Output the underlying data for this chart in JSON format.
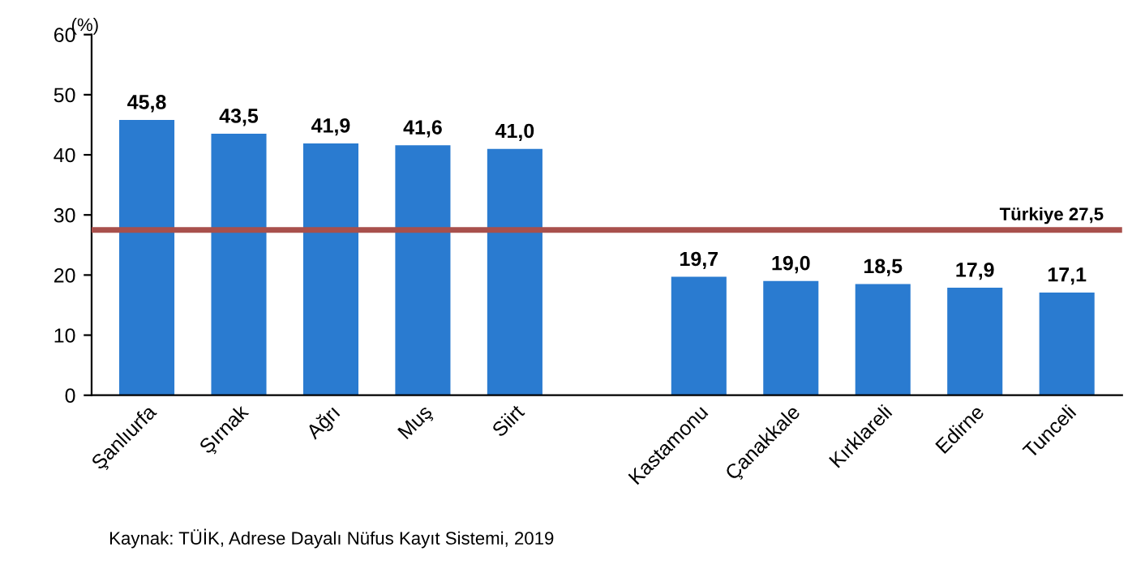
{
  "chart_data": {
    "type": "bar",
    "ylabel": "(%)",
    "categories": [
      "Şanlıurfa",
      "Şırnak",
      "Ağrı",
      "Muş",
      "Siirt",
      null,
      "Kastamonu",
      "Çanakkale",
      "Kırklareli",
      "Edirne",
      "Tunceli"
    ],
    "values": [
      45.8,
      43.5,
      41.9,
      41.6,
      41.0,
      null,
      19.7,
      19.0,
      18.5,
      17.9,
      17.1
    ],
    "value_labels": [
      "45,8",
      "43,5",
      "41,9",
      "41,6",
      "41,0",
      null,
      "19,7",
      "19,0",
      "18,5",
      "17,9",
      "17,1"
    ],
    "color": "#2a7bd0",
    "ylim": [
      0,
      60
    ],
    "yticks": [
      0,
      10,
      20,
      30,
      40,
      50,
      60
    ],
    "grid": false,
    "ref_lines": [
      {
        "axis": "y",
        "value": 27.5,
        "label": "Türkiye 27,5",
        "color": "#a8504c"
      }
    ],
    "annotations": [
      "Kaynak: TÜİK, Adrese Dayalı Nüfus Kayıt Sistemi, 2019"
    ]
  }
}
